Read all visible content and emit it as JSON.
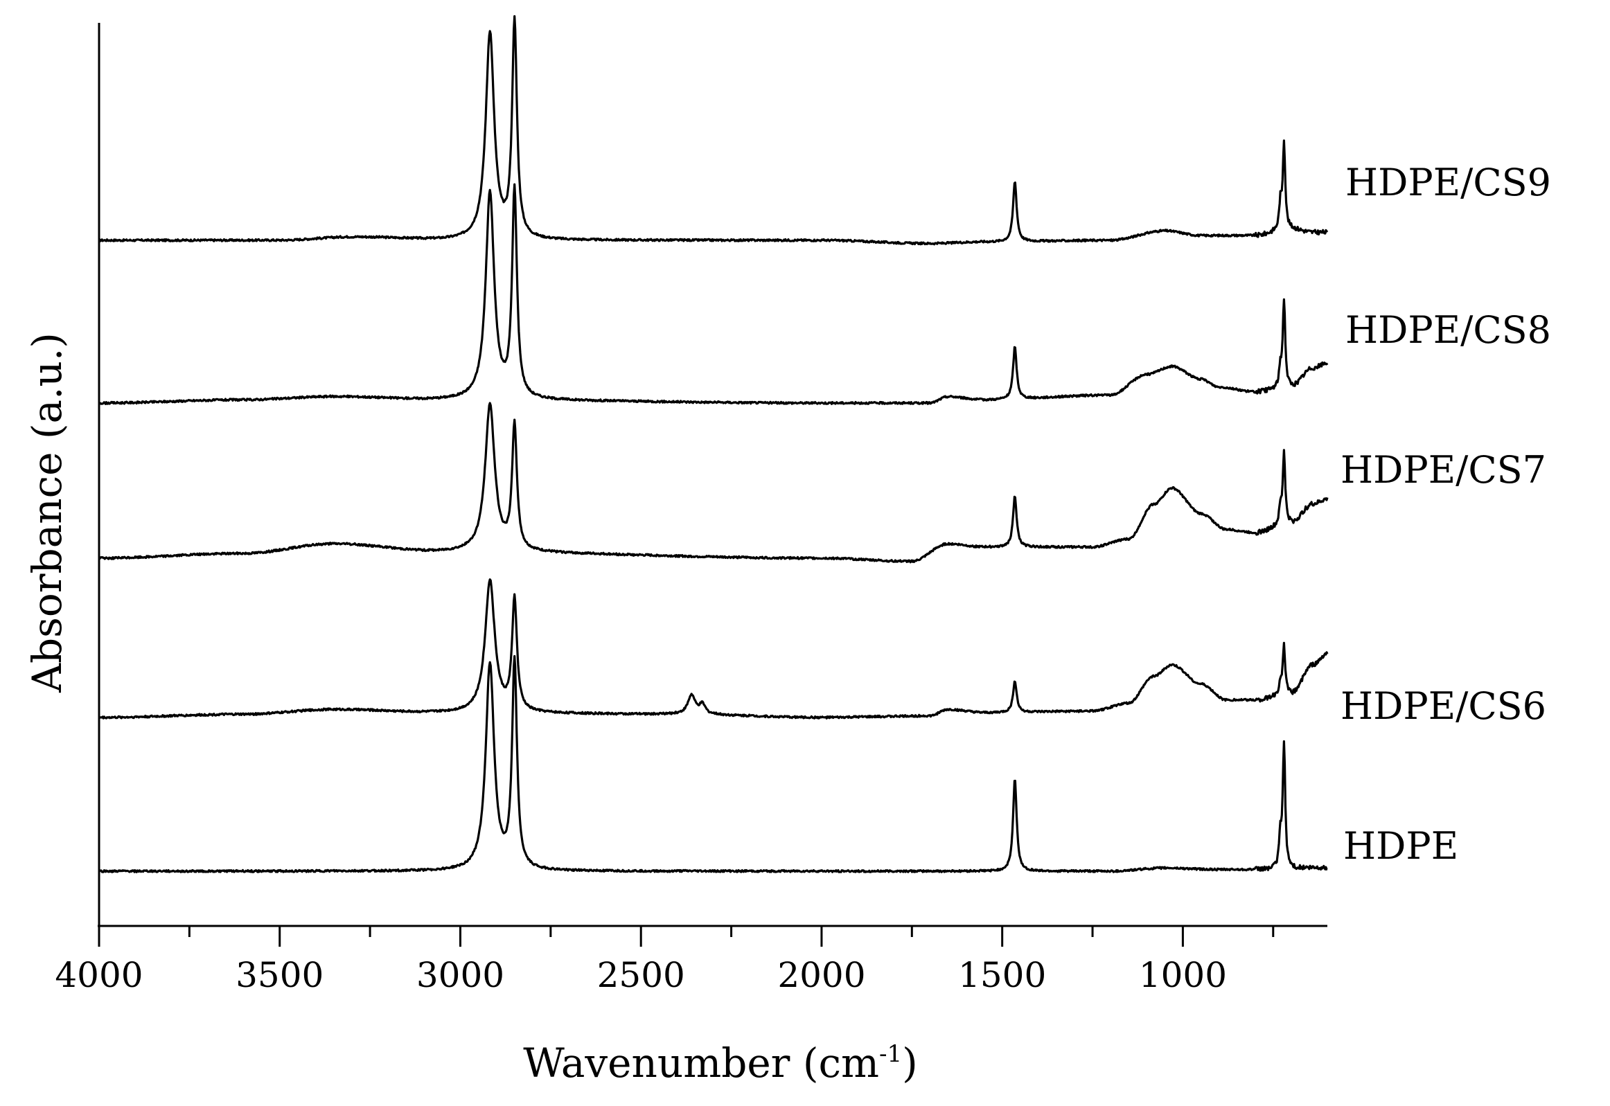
{
  "chart_data": {
    "type": "line",
    "title": "",
    "xlabel": "Wavenumber (cm",
    "xlabel_superscript": "-1",
    "xlabel_suffix": ")",
    "ylabel": "Absorbance (a.u.)",
    "xlim": [
      4000,
      600
    ],
    "x_tick_labels": [
      "4000",
      "3500",
      "3000",
      "2500",
      "2000",
      "1500",
      "1000"
    ],
    "x_tick_values": [
      4000,
      3500,
      3000,
      2500,
      2000,
      1500,
      1000
    ],
    "x_minor_step": 250,
    "y_ticks_shown": false,
    "grid": false,
    "legend": "labels at right end of each trace",
    "series": [
      {
        "name": "HDPE/CS9",
        "offset": 4,
        "baseline": [
          [
            4000,
            0.0
          ],
          [
            3500,
            0.0
          ],
          [
            3300,
            0.02
          ],
          [
            3000,
            0.0
          ],
          [
            2000,
            0.0
          ],
          [
            1700,
            -0.02
          ],
          [
            1550,
            -0.01
          ],
          [
            1200,
            0.0
          ],
          [
            1050,
            0.06
          ],
          [
            950,
            0.03
          ],
          [
            800,
            0.03
          ],
          [
            700,
            0.07
          ],
          [
            640,
            0.05
          ],
          [
            600,
            0.05
          ]
        ],
        "peaks": [
          [
            2918,
            1.3,
            14
          ],
          [
            2850,
            1.35,
            8
          ],
          [
            1465,
            0.38,
            6
          ],
          [
            720,
            0.55,
            4
          ],
          [
            730,
            0.16,
            4
          ]
        ]
      },
      {
        "name": "HDPE/CS8",
        "offset": 3,
        "baseline": [
          [
            4000,
            0.0
          ],
          [
            3600,
            0.02
          ],
          [
            3350,
            0.04
          ],
          [
            3050,
            0.02
          ],
          [
            2000,
            0.0
          ],
          [
            1700,
            0.0
          ],
          [
            1650,
            0.04
          ],
          [
            1550,
            0.02
          ],
          [
            1200,
            0.05
          ],
          [
            1100,
            0.18
          ],
          [
            1030,
            0.23
          ],
          [
            950,
            0.15
          ],
          [
            900,
            0.1
          ],
          [
            800,
            0.07
          ],
          [
            700,
            0.1
          ],
          [
            640,
            0.22
          ],
          [
            600,
            0.25
          ]
        ],
        "peaks": [
          [
            2918,
            1.3,
            14
          ],
          [
            2850,
            1.3,
            8
          ],
          [
            1465,
            0.33,
            6
          ],
          [
            720,
            0.55,
            4
          ],
          [
            730,
            0.12,
            4
          ]
        ]
      },
      {
        "name": "HDPE/CS7",
        "offset": 2,
        "baseline": [
          [
            4000,
            0.0
          ],
          [
            3600,
            0.03
          ],
          [
            3350,
            0.09
          ],
          [
            3050,
            0.04
          ],
          [
            2000,
            0.0
          ],
          [
            1750,
            -0.02
          ],
          [
            1650,
            0.09
          ],
          [
            1550,
            0.07
          ],
          [
            1250,
            0.07
          ],
          [
            1150,
            0.12
          ],
          [
            1080,
            0.34
          ],
          [
            1030,
            0.44
          ],
          [
            950,
            0.28
          ],
          [
            880,
            0.18
          ],
          [
            800,
            0.16
          ],
          [
            700,
            0.22
          ],
          [
            640,
            0.34
          ],
          [
            600,
            0.37
          ]
        ],
        "peaks": [
          [
            2918,
            0.92,
            16
          ],
          [
            2850,
            0.78,
            8
          ],
          [
            1465,
            0.32,
            6
          ],
          [
            720,
            0.45,
            4
          ],
          [
            730,
            0.1,
            4
          ]
        ]
      },
      {
        "name": "HDPE/CS6",
        "offset": 1,
        "baseline": [
          [
            4000,
            0.0
          ],
          [
            3600,
            0.02
          ],
          [
            3350,
            0.05
          ],
          [
            3050,
            0.03
          ],
          [
            2400,
            0.02
          ],
          [
            2000,
            0.0
          ],
          [
            1700,
            0.01
          ],
          [
            1650,
            0.05
          ],
          [
            1550,
            0.03
          ],
          [
            1250,
            0.04
          ],
          [
            1150,
            0.09
          ],
          [
            1080,
            0.26
          ],
          [
            1030,
            0.33
          ],
          [
            950,
            0.21
          ],
          [
            880,
            0.11
          ],
          [
            800,
            0.11
          ],
          [
            700,
            0.15
          ],
          [
            640,
            0.33
          ],
          [
            600,
            0.4
          ]
        ],
        "peaks": [
          [
            2918,
            0.83,
            16
          ],
          [
            2850,
            0.7,
            8
          ],
          [
            2360,
            0.12,
            12
          ],
          [
            2330,
            0.06,
            10
          ],
          [
            1465,
            0.2,
            6
          ],
          [
            720,
            0.3,
            4
          ],
          [
            730,
            0.08,
            4
          ]
        ]
      },
      {
        "name": "HDPE",
        "offset": 0,
        "baseline": [
          [
            4000,
            0.0
          ],
          [
            3000,
            0.0
          ],
          [
            2000,
            0.0
          ],
          [
            1200,
            0.0
          ],
          [
            1050,
            0.02
          ],
          [
            900,
            0.01
          ],
          [
            800,
            0.01
          ],
          [
            600,
            0.02
          ]
        ],
        "peaks": [
          [
            2918,
            1.3,
            14
          ],
          [
            2850,
            1.3,
            8
          ],
          [
            1465,
            0.58,
            6
          ],
          [
            720,
            0.78,
            4
          ],
          [
            730,
            0.2,
            4
          ]
        ]
      }
    ]
  }
}
